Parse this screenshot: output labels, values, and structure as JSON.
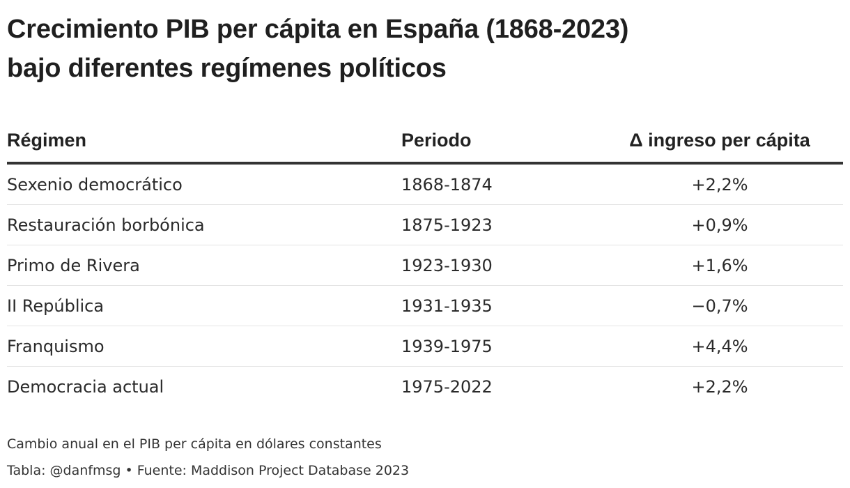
{
  "chart_data": {
    "type": "table",
    "title": {
      "line1": "Crecimiento PIB per cápita en España (1868-2023)",
      "line2": "bajo diferentes regímenes políticos"
    },
    "columns": [
      "Régimen",
      "Periodo",
      "Δ ingreso per cápita"
    ],
    "rows": [
      {
        "regimen": "Sexenio democrático",
        "periodo": "1868-1874",
        "cambio": "+2,2%",
        "value": 2.2
      },
      {
        "regimen": "Restauración borbónica",
        "periodo": "1875-1923",
        "cambio": "+0,9%",
        "value": 0.9
      },
      {
        "regimen": "Primo de Rivera",
        "periodo": "1923-1930",
        "cambio": "+1,6%",
        "value": 1.6
      },
      {
        "regimen": "II República",
        "periodo": "1931-1935",
        "cambio": "−0,7%",
        "value": -0.7
      },
      {
        "regimen": "Franquismo",
        "periodo": "1939-1975",
        "cambio": "+4,4%",
        "value": 4.4
      },
      {
        "regimen": "Democracia actual",
        "periodo": "1975-2022",
        "cambio": "+2,2%",
        "value": 2.2
      }
    ],
    "note": "Cambio anual en el PIB per cápita en dólares constantes",
    "credit": "Tabla: @danfmsg • Fuente: Maddison Project Database 2023"
  }
}
